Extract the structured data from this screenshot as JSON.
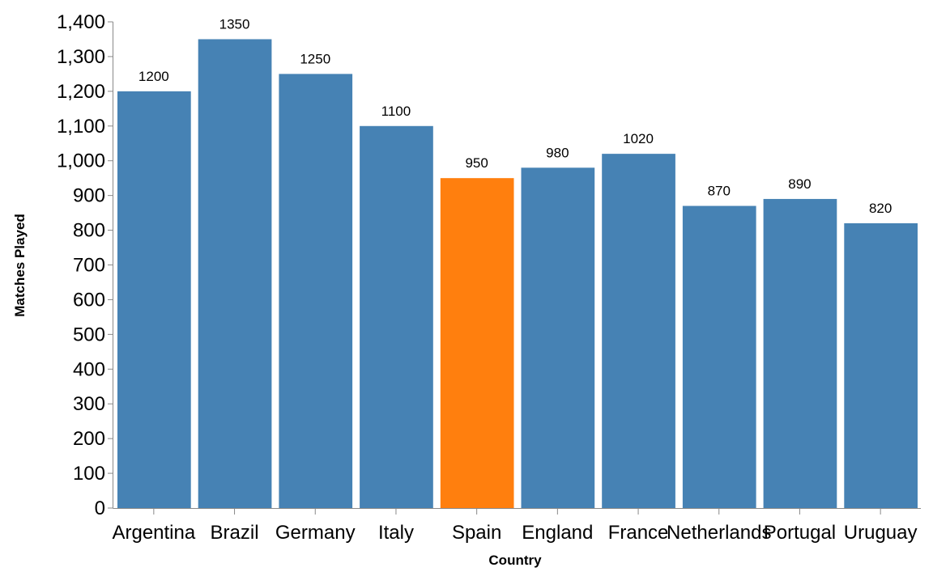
{
  "chart_data": {
    "type": "bar",
    "title": "",
    "xlabel": "Country",
    "ylabel": "Matches Played",
    "categories": [
      "Argentina",
      "Brazil",
      "Germany",
      "Italy",
      "Spain",
      "England",
      "France",
      "Netherlands",
      "Portugal",
      "Uruguay"
    ],
    "values": [
      1200,
      1350,
      1250,
      1100,
      950,
      980,
      1020,
      870,
      890,
      820
    ],
    "data_labels": [
      "1200",
      "1350",
      "1250",
      "1100",
      "950",
      "980",
      "1020",
      "870",
      "890",
      "820"
    ],
    "ylim": [
      0,
      1400
    ],
    "yticks": [
      0,
      100,
      200,
      300,
      400,
      500,
      600,
      700,
      800,
      900,
      1000,
      1100,
      1200,
      1300,
      1400
    ],
    "ytick_labels": [
      "0",
      "100",
      "200",
      "300",
      "400",
      "500",
      "600",
      "700",
      "800",
      "900",
      "1,000",
      "1,100",
      "1,200",
      "1,300",
      "1,400"
    ],
    "highlight_category": "Spain",
    "colors": {
      "bar": "#4682b4",
      "highlight": "#ff7f0e"
    },
    "grid": false,
    "legend": "none"
  }
}
